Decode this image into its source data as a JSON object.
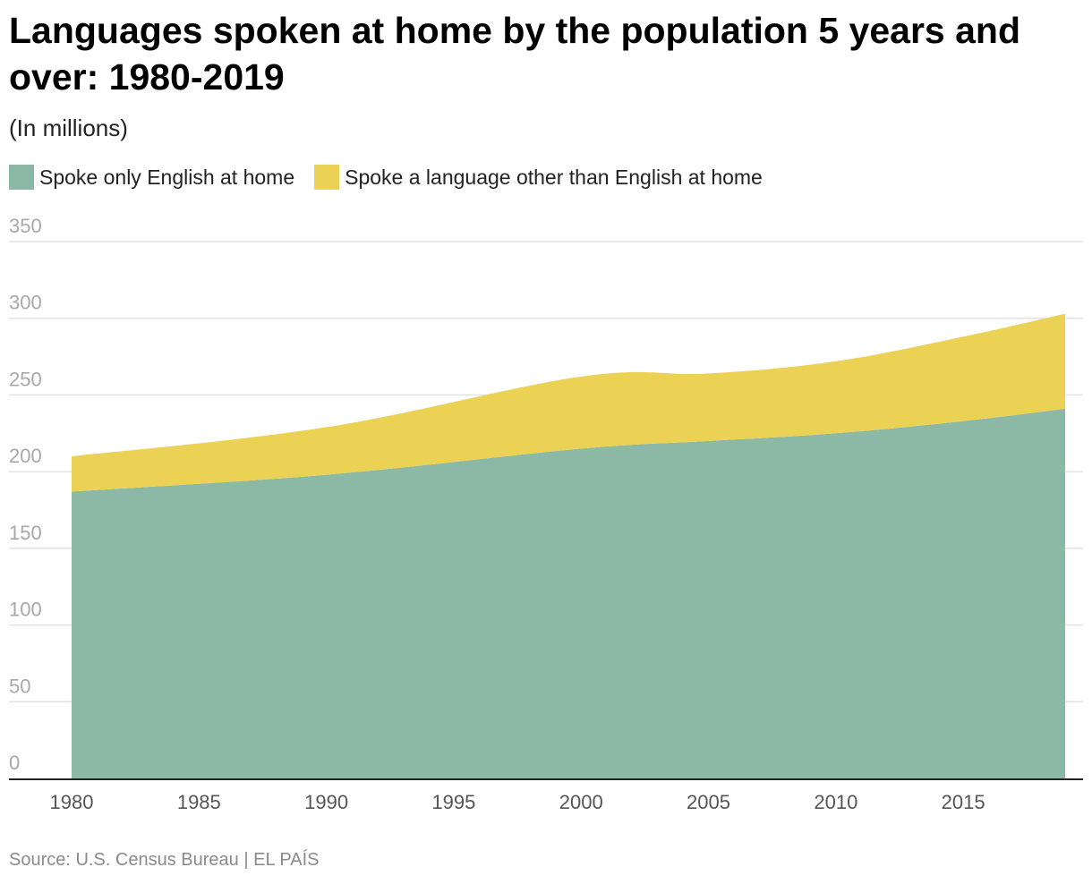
{
  "chart_data": {
    "type": "area",
    "stacked": true,
    "title": "Languages spoken at home by the population 5 years and over: 1980-2019",
    "subtitle": "(In millions)",
    "source": "Source: U.S. Census Bureau | EL PAÍS",
    "x": [
      1980,
      1990,
      2000,
      2005,
      2010,
      2015,
      2019
    ],
    "series": [
      {
        "name": "Spoke only English at home",
        "color": "#8cb9a6",
        "values": [
          187,
          198,
          215,
          220,
          225,
          233,
          241
        ]
      },
      {
        "name": "Spoke a language other than English at home",
        "color": "#ebd254",
        "values": [
          23,
          31,
          47,
          44,
          47,
          55,
          62
        ]
      }
    ],
    "xticks": [
      1980,
      1985,
      1990,
      1995,
      2000,
      2005,
      2010,
      2015
    ],
    "yticks": [
      0,
      50,
      100,
      150,
      200,
      250,
      300,
      350
    ],
    "xlim": [
      1980,
      2019
    ],
    "ylim": [
      0,
      350
    ],
    "grid": true,
    "legend": "top-left"
  }
}
